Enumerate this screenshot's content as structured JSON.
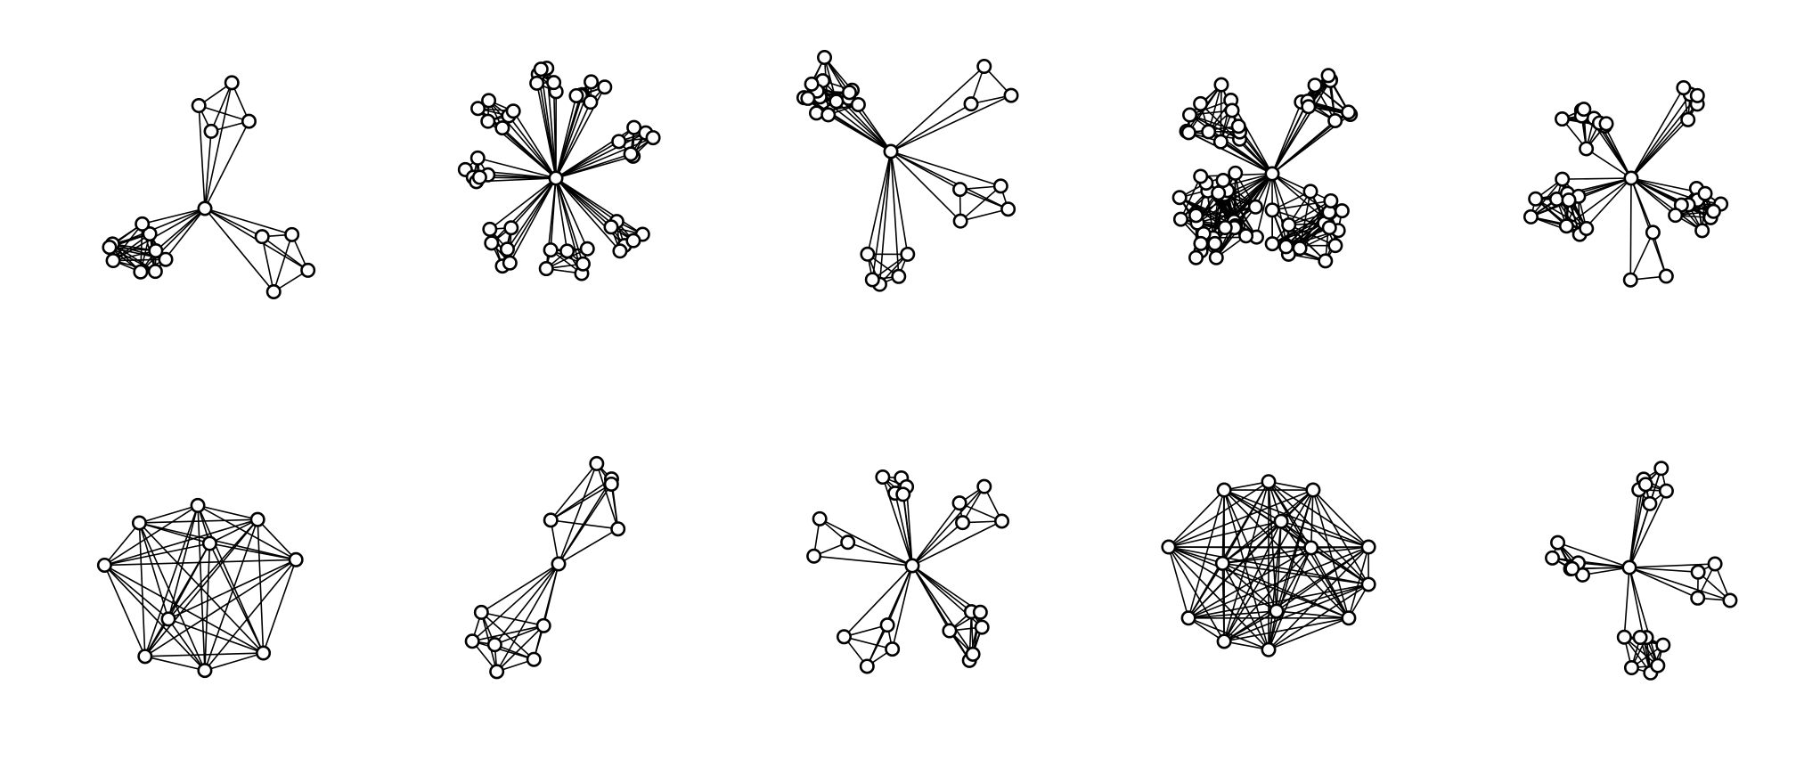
{
  "figure": {
    "description_free": true,
    "layout_rows": 2,
    "layout_cols": 5,
    "colors": {
      "background": "#ffffff",
      "edge": "#000000",
      "node_fill": "#ffffff",
      "node_stroke": "#000000"
    },
    "graphs": [
      {
        "id": "g1",
        "hub": 1,
        "clusters": [
          4,
          9,
          4
        ]
      },
      {
        "id": "g2",
        "hub": 1,
        "clusters": [
          6,
          6,
          6,
          6,
          6,
          6,
          6,
          6
        ]
      },
      {
        "id": "g3",
        "hub": 1,
        "clusters": [
          14,
          3,
          4,
          5
        ]
      },
      {
        "id": "g4",
        "hub": 1,
        "clusters": [
          12,
          10,
          16,
          20,
          6
        ]
      },
      {
        "id": "g5",
        "hub": 1,
        "clusters": [
          9,
          5,
          10,
          10,
          3
        ]
      },
      {
        "id": "g6",
        "hub": 0,
        "clusters": [
          10
        ],
        "complete": true
      },
      {
        "id": "g7",
        "hub": 1,
        "clusters": [
          5,
          6
        ]
      },
      {
        "id": "g8",
        "hub": 1,
        "clusters": [
          5,
          4,
          3,
          4,
          6
        ]
      },
      {
        "id": "g9",
        "hub": 0,
        "clusters": [
          14
        ],
        "complete": true
      },
      {
        "id": "g10",
        "hub": 1,
        "clusters": [
          6,
          6,
          4,
          7
        ]
      }
    ]
  }
}
